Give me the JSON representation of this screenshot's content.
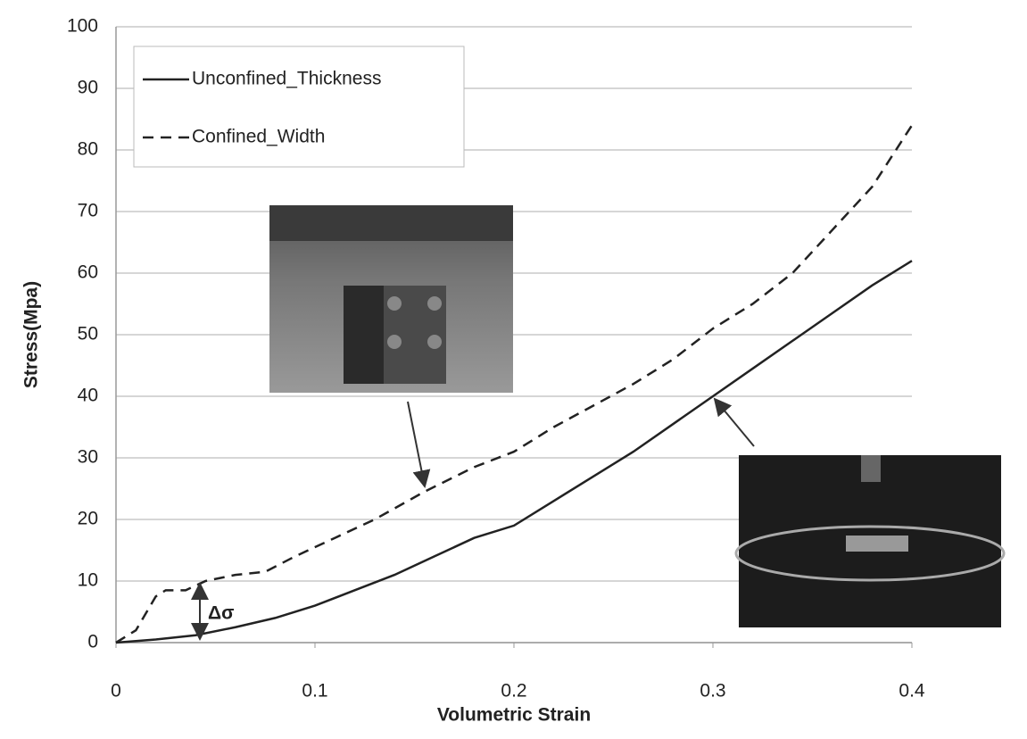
{
  "chart_data": {
    "type": "line",
    "x_label": "Volumetric Strain",
    "y_label": "Stress(Mpa)",
    "xlim": [
      0,
      0.4
    ],
    "xticks": [
      0,
      0.1,
      0.2,
      0.3,
      0.4
    ],
    "ylim": [
      0,
      100
    ],
    "yticks": [
      0,
      10,
      20,
      30,
      40,
      50,
      60,
      70,
      80,
      90,
      100
    ],
    "grid": true,
    "legend": "upper left",
    "annotations": [
      "Δσ"
    ],
    "series": [
      {
        "name": "Unconfined_Thickness",
        "color": "#222222",
        "dash": "solid",
        "x": [
          0,
          0.02,
          0.04,
          0.06,
          0.08,
          0.1,
          0.12,
          0.14,
          0.16,
          0.18,
          0.2,
          0.22,
          0.24,
          0.26,
          0.28,
          0.3,
          0.32,
          0.34,
          0.36,
          0.38,
          0.4
        ],
        "values": [
          0,
          0.5,
          1.2,
          2.5,
          4,
          6,
          8.5,
          11,
          14,
          17,
          19,
          23,
          27,
          31,
          35.5,
          40,
          44.5,
          49,
          53.5,
          58,
          62
        ]
      },
      {
        "name": "Confined_Width",
        "color": "#222222",
        "dash": "dashed",
        "x": [
          0,
          0.01,
          0.02,
          0.025,
          0.035,
          0.045,
          0.06,
          0.075,
          0.09,
          0.11,
          0.13,
          0.155,
          0.18,
          0.2,
          0.22,
          0.24,
          0.26,
          0.28,
          0.3,
          0.32,
          0.34,
          0.36,
          0.38,
          0.4
        ],
        "values": [
          0,
          2,
          7.5,
          8.5,
          8.5,
          10,
          11,
          11.5,
          14,
          17,
          20,
          24.5,
          28.5,
          31,
          35,
          38.5,
          42,
          46,
          51,
          55,
          60,
          67,
          74,
          84
        ]
      }
    ]
  }
}
